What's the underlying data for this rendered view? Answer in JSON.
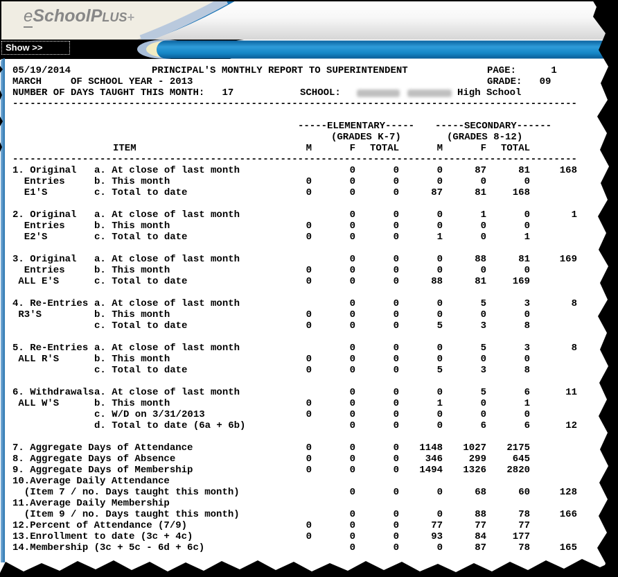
{
  "logo": {
    "e": "e",
    "school": "School",
    "plus_cap": "P",
    "plus_small": "LUS",
    "plus_sign": "+"
  },
  "toolbar": {
    "show_button": "Show >>"
  },
  "colors": {
    "bar_blue": "#1486c6",
    "toolbar_black": "#000000",
    "logo_gray": "#878787",
    "beige": "#f0ede3"
  },
  "report": {
    "line1": {
      "date": "05/19/2014",
      "title": "PRINCIPAL'S MONTHLY REPORT TO SUPERINTENDENT",
      "page": "PAGE:      1"
    },
    "line2": {
      "text": "MARCH     OF SCHOOL YEAR - 2013",
      "grade": "GRADE:   09"
    },
    "line3": {
      "text": "NUMBER OF DAYS TAUGHT THIS MONTH:   17",
      "school_label": "SCHOOL:",
      "school_name_blurred": true,
      "school_suffix": "High School"
    },
    "columns": {
      "group1": "-----ELEMENTARY-----",
      "group1_sub": "(GRADES K-7)",
      "group2": "-----SECONDARY------",
      "group2_sub": "(GRADES 8-12)",
      "item": "ITEM",
      "headers": [
        "M",
        "F",
        "TOTAL",
        "M",
        "F",
        "TOTAL"
      ]
    },
    "separator": "-------------------------------------------------------------------------------------------------",
    "rows": [
      {
        "label": "1. Original",
        "sub": "a. At close of last month",
        "v": [
          "",
          "0",
          "0",
          "0",
          "87",
          "81",
          "168"
        ]
      },
      {
        "label": "  Entries",
        "sub": "b. This month",
        "v": [
          "0",
          "0",
          "0",
          "0",
          "0",
          "0",
          ""
        ]
      },
      {
        "label": "  E1'S",
        "sub": "c. Total to date",
        "v": [
          "0",
          "0",
          "0",
          "87",
          "81",
          "168",
          ""
        ]
      },
      {
        "gap": true,
        "label": "2. Original",
        "sub": "a. At close of last month",
        "v": [
          "",
          "0",
          "0",
          "0",
          "1",
          "0",
          "1"
        ]
      },
      {
        "label": "  Entries",
        "sub": "b. This month",
        "v": [
          "0",
          "0",
          "0",
          "0",
          "0",
          "0",
          ""
        ]
      },
      {
        "label": "  E2'S",
        "sub": "c. Total to date",
        "v": [
          "0",
          "0",
          "0",
          "1",
          "0",
          "1",
          ""
        ]
      },
      {
        "gap": true,
        "label": "3. Original",
        "sub": "a. At close of last month",
        "v": [
          "",
          "0",
          "0",
          "0",
          "88",
          "81",
          "169"
        ]
      },
      {
        "label": "  Entries",
        "sub": "b. This month",
        "v": [
          "0",
          "0",
          "0",
          "0",
          "0",
          "0",
          ""
        ]
      },
      {
        "label": " ALL E'S",
        "sub": "c. Total to date",
        "v": [
          "0",
          "0",
          "0",
          "88",
          "81",
          "169",
          ""
        ]
      },
      {
        "gap": true,
        "label": "4. Re-Entries",
        "sub": "a. At close of last month",
        "v": [
          "",
          "0",
          "0",
          "0",
          "5",
          "3",
          "8"
        ]
      },
      {
        "label": " R3'S",
        "sub": "b. This month",
        "v": [
          "0",
          "0",
          "0",
          "0",
          "0",
          "0",
          ""
        ]
      },
      {
        "label": "",
        "sub": "c. Total to date",
        "v": [
          "0",
          "0",
          "0",
          "5",
          "3",
          "8",
          ""
        ]
      },
      {
        "gap": true,
        "label": "5. Re-Entries",
        "sub": "a. At close of last month",
        "v": [
          "",
          "0",
          "0",
          "0",
          "5",
          "3",
          "8"
        ]
      },
      {
        "label": " ALL R'S",
        "sub": "b. This month",
        "v": [
          "0",
          "0",
          "0",
          "0",
          "0",
          "0",
          ""
        ]
      },
      {
        "label": "",
        "sub": "c. Total to date",
        "v": [
          "0",
          "0",
          "0",
          "5",
          "3",
          "8",
          ""
        ]
      },
      {
        "gap": true,
        "label": "6. Withdrawals",
        "sub": "a. At close of last month",
        "v": [
          "",
          "0",
          "0",
          "0",
          "5",
          "6",
          "11"
        ]
      },
      {
        "label": " ALL W'S",
        "sub": "b. This month",
        "v": [
          "0",
          "0",
          "0",
          "1",
          "0",
          "1",
          ""
        ]
      },
      {
        "label": "",
        "sub": "c. W/D on 3/31/2013",
        "v": [
          "0",
          "0",
          "0",
          "0",
          "0",
          "0",
          ""
        ]
      },
      {
        "label": "",
        "sub": "d. Total to date (6a + 6b)",
        "v": [
          "",
          "0",
          "0",
          "0",
          "6",
          "6",
          "12"
        ]
      },
      {
        "gap": true,
        "merged": "7. Aggregate Days of Attendance",
        "v": [
          "0",
          "0",
          "0",
          "1148",
          "1027",
          "2175",
          ""
        ]
      },
      {
        "merged": "8. Aggregate Days of Absence",
        "v": [
          "0",
          "0",
          "0",
          "346",
          "299",
          "645",
          ""
        ]
      },
      {
        "merged": "9. Aggregate Days of Membership",
        "v": [
          "0",
          "0",
          "0",
          "1494",
          "1326",
          "2820",
          ""
        ]
      },
      {
        "merged": "10.Average Daily Attendance",
        "v": [
          "",
          "",
          "",
          "",
          "",
          "",
          ""
        ]
      },
      {
        "merged": "  (Item 7 / no. Days taught this month)",
        "v": [
          "",
          "0",
          "0",
          "0",
          "68",
          "60",
          "128"
        ]
      },
      {
        "merged": "11.Average Daily Membership",
        "v": [
          "",
          "",
          "",
          "",
          "",
          "",
          ""
        ]
      },
      {
        "merged": "  (Item 9 / no. Days taught this month)",
        "v": [
          "",
          "0",
          "0",
          "0",
          "88",
          "78",
          "166"
        ]
      },
      {
        "merged": "12.Percent of Attendance (7/9)",
        "v": [
          "0",
          "0",
          "0",
          "77",
          "77",
          "77",
          ""
        ]
      },
      {
        "merged": "13.Enrollment to date (3c + 4c)",
        "v": [
          "0",
          "0",
          "0",
          "93",
          "84",
          "177",
          ""
        ]
      },
      {
        "merged": "14.Membership (3c + 5c - 6d + 6c)",
        "v": [
          "",
          "0",
          "0",
          "0",
          "87",
          "78",
          "165"
        ]
      }
    ]
  }
}
